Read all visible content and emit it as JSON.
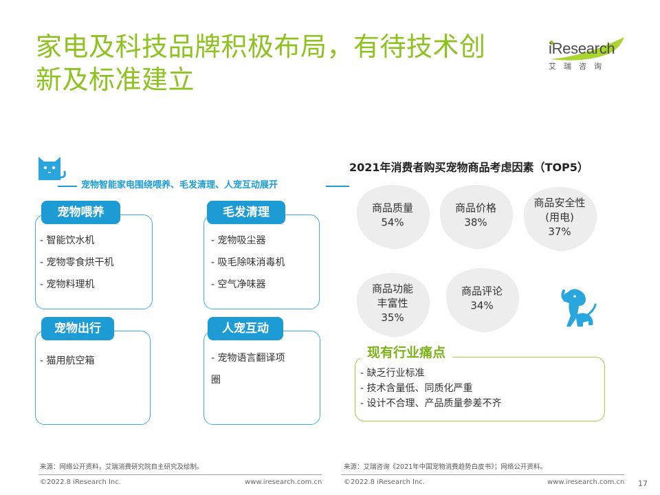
{
  "title_line1": "家电及科技品牌积极布局，有待技术创",
  "title_line2": "新及标准建立",
  "logo": {
    "brand": "iResearch",
    "sub": "艾瑞咨询"
  },
  "subtitle": "宠物智能家电围绕喂养、毛发清理、人宠互动展开",
  "categories": [
    {
      "label": "宠物喂养",
      "items": [
        "- 智能饮水机",
        "- 宠物零食烘干机",
        "- 宠物料理机"
      ]
    },
    {
      "label": "毛发清理",
      "items": [
        "- 宠物吸尘器",
        "- 吸毛除味消毒机",
        "- 空气净味器"
      ]
    },
    {
      "label": "宠物出行",
      "items": [
        "- 猫用航空箱"
      ]
    },
    {
      "label": "人宠互动",
      "items": [
        "-  宠物语言翻译项",
        "圈"
      ]
    }
  ],
  "chart_data": {
    "type": "table",
    "title": "2021年消费者购买宠物商品考虑因素（TOP5）",
    "factors": [
      {
        "name_lines": [
          "商品质量"
        ],
        "value": 54,
        "value_label": "54%"
      },
      {
        "name_lines": [
          "商品价格"
        ],
        "value": 38,
        "value_label": "38%"
      },
      {
        "name_lines": [
          "商品安全性",
          "(用电)"
        ],
        "value": 37,
        "value_label": "37%"
      },
      {
        "name_lines": [
          "商品功能",
          "丰富性"
        ],
        "value": 35,
        "value_label": "35%"
      },
      {
        "name_lines": [
          "商品评论"
        ],
        "value": 34,
        "value_label": "34%"
      }
    ]
  },
  "pain_points": {
    "title": "现有行业痛点",
    "items": [
      "- 缺乏行业标准",
      "- 技术含量低、同质化严重",
      "- 设计不合理、产品质量参差不齐"
    ]
  },
  "footer": {
    "source_left": "来源：网络公开资料，艾瑞消费研究院自主研究及绘制。",
    "source_right": "来源：艾瑞咨询《2021年中国宠物消费趋势白皮书》；网络公开资料。",
    "copyright": "©2022.8 iResearch Inc.",
    "website": "www.iresearch.com.cn",
    "page": "17"
  },
  "colors": {
    "title_green": "#8dc21f",
    "accent_blue": "#1d9bd5",
    "blob_grey": "#ededed",
    "pain_green": "#7cb21a"
  }
}
